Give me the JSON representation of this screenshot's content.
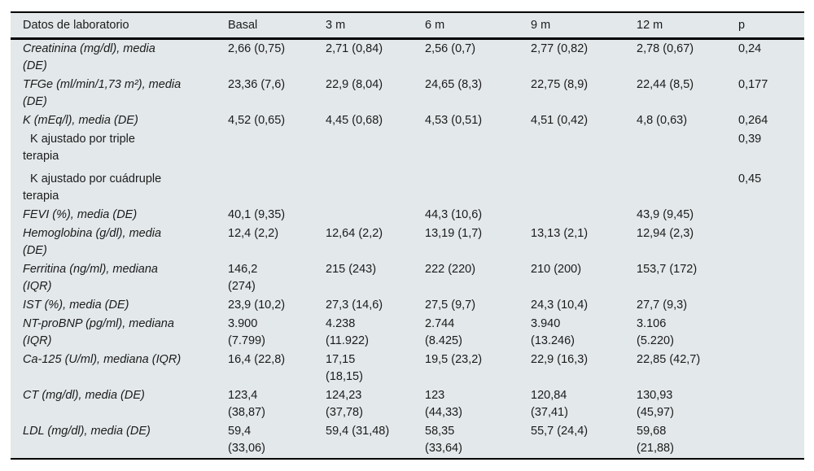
{
  "colors": {
    "table_background": "#e3e8ea",
    "rule": "#000000",
    "text": "#1b1b1b",
    "page_background": "#ffffff"
  },
  "table": {
    "columns": [
      "Datos de laboratorio",
      "Basal",
      "3 m",
      "6 m",
      "9 m",
      "12 m",
      "p"
    ],
    "rows": [
      {
        "label": "Creatinina (mg/dl), media\n(DE)",
        "values": [
          "2,66 (0,75)",
          "2,71 (0,84)",
          "2,56 (0,7)",
          "2,77 (0,82)",
          "2,78 (0,67)"
        ],
        "p": "0,24"
      },
      {
        "label": "TFGe (ml/min/1,73 m²), media\n(DE)",
        "values": [
          "23,36 (7,6)",
          "22,9 (8,04)",
          "24,65 (8,3)",
          "22,75 (8,9)",
          "22,44 (8,5)"
        ],
        "p": "0,177"
      },
      {
        "label": "K (mEq/l), media (DE)",
        "values": [
          "4,52 (0,65)",
          "4,45 (0,68)",
          "4,53 (0,51)",
          "4,51 (0,42)",
          "4,8 (0,63)"
        ],
        "p": "0,264"
      },
      {
        "label": "K ajustado por triple\nterapia",
        "sub": true,
        "values": [
          "",
          "",
          "",
          "",
          ""
        ],
        "p": "0,39"
      },
      {
        "label": "K ajustado por cuádruple\nterapia",
        "sub": true,
        "spacer_top": true,
        "values": [
          "",
          "",
          "",
          "",
          ""
        ],
        "p": "0,45"
      },
      {
        "label": "FEVI (%), media (DE)",
        "values": [
          "40,1 (9,35)",
          "",
          "44,3 (10,6)",
          "",
          "43,9 (9,45)"
        ],
        "p": ""
      },
      {
        "label": "Hemoglobina (g/dl), media\n(DE)",
        "values": [
          "12,4 (2,2)",
          "12,64 (2,2)",
          "13,19 (1,7)",
          "13,13 (2,1)",
          "12,94 (2,3)"
        ],
        "p": ""
      },
      {
        "label": "Ferritina (ng/ml), mediana\n(IQR)",
        "values": [
          "146,2\n(274)",
          "215 (243)",
          "222 (220)",
          "210 (200)",
          "153,7 (172)"
        ],
        "p": ""
      },
      {
        "label": "IST (%), media (DE)",
        "values": [
          "23,9 (10,2)",
          "27,3 (14,6)",
          "27,5 (9,7)",
          "24,3 (10,4)",
          "27,7 (9,3)"
        ],
        "p": ""
      },
      {
        "label": "NT-proBNP (pg/ml), mediana\n(IQR)",
        "values": [
          "3.900\n(7.799)",
          "4.238\n(11.922)",
          "2.744\n(8.425)",
          "3.940\n(13.246)",
          "3.106\n(5.220)"
        ],
        "p": ""
      },
      {
        "label": "Ca-125 (U/ml), mediana (IQR)",
        "values": [
          "16,4 (22,8)",
          "17,15\n(18,15)",
          "19,5 (23,2)",
          "22,9 (16,3)",
          "22,85 (42,7)"
        ],
        "p": ""
      },
      {
        "label": "CT (mg/dl), media (DE)",
        "values": [
          "123,4\n(38,87)",
          "124,23\n(37,78)",
          "123\n(44,33)",
          "120,84\n(37,41)",
          "130,93\n(45,97)"
        ],
        "p": ""
      },
      {
        "label": "LDL (mg/dl), media (DE)",
        "values": [
          "59,4\n(33,06)",
          "59,4 (31,48)",
          "58,35\n(33,64)",
          "55,7 (24,4)",
          "59,68\n(21,88)"
        ],
        "p": ""
      }
    ]
  }
}
